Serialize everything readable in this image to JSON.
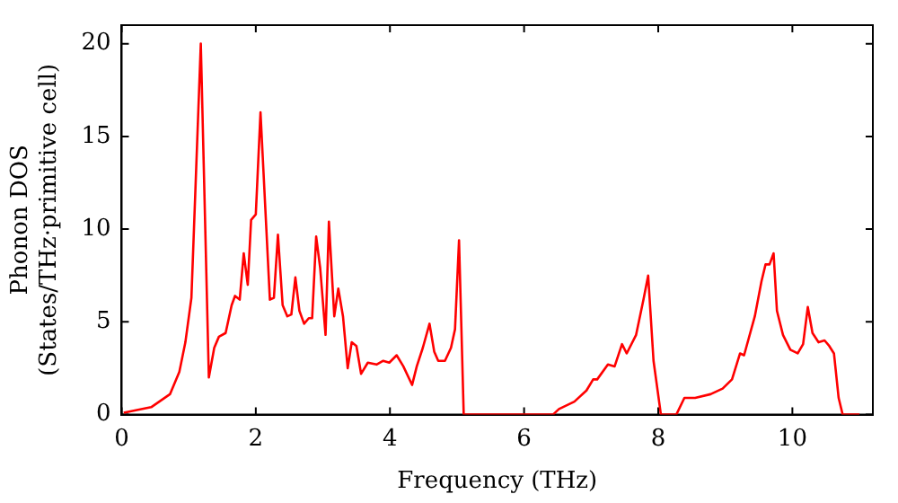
{
  "chart_data": {
    "type": "line",
    "xlabel": "Frequency (THz)",
    "ylabel": "Phonon DOS\n(States/THz·primitive cell)",
    "xlim": [
      0,
      11.2
    ],
    "ylim": [
      0,
      21
    ],
    "xticks": [
      0,
      2,
      4,
      6,
      8,
      10
    ],
    "yticks": [
      0,
      5,
      10,
      15,
      20
    ],
    "marker": "none",
    "line_style": "solid",
    "legend": false,
    "series": [
      {
        "color": "#ff0000",
        "x": [
          0.03,
          0.44,
          0.72,
          0.86,
          0.95,
          1.04,
          1.18,
          1.3,
          1.38,
          1.45,
          1.55,
          1.64,
          1.69,
          1.76,
          1.82,
          1.88,
          1.93,
          2.0,
          2.07,
          2.21,
          2.27,
          2.33,
          2.4,
          2.47,
          2.53,
          2.59,
          2.65,
          2.72,
          2.79,
          2.84,
          2.9,
          2.96,
          3.04,
          3.09,
          3.17,
          3.23,
          3.3,
          3.37,
          3.43,
          3.5,
          3.57,
          3.67,
          3.8,
          3.9,
          3.99,
          4.1,
          4.2,
          4.33,
          4.4,
          4.49,
          4.59,
          4.66,
          4.72,
          4.82,
          4.91,
          4.97,
          5.03,
          5.1,
          6.43,
          6.52,
          6.75,
          6.93,
          7.03,
          7.09,
          7.25,
          7.35,
          7.46,
          7.53,
          7.67,
          7.78,
          7.85,
          7.93,
          8.04,
          8.27,
          8.39,
          8.55,
          8.78,
          8.96,
          9.1,
          9.22,
          9.28,
          9.44,
          9.54,
          9.6,
          9.66,
          9.72,
          9.77,
          9.86,
          9.97,
          10.08,
          10.16,
          10.23,
          10.3,
          10.39,
          10.48,
          10.55,
          10.62,
          10.69,
          10.75,
          11.0
        ],
        "values": [
          0.1,
          0.4,
          1.1,
          2.3,
          3.9,
          6.3,
          20,
          2.0,
          3.6,
          4.2,
          4.4,
          5.9,
          6.4,
          6.2,
          8.7,
          7.0,
          10.5,
          10.8,
          16.3,
          6.2,
          6.3,
          9.7,
          5.9,
          5.3,
          5.4,
          7.4,
          5.6,
          4.9,
          5.2,
          5.2,
          9.6,
          7.9,
          4.3,
          10.4,
          5.3,
          6.8,
          5.3,
          2.5,
          3.9,
          3.7,
          2.2,
          2.8,
          2.7,
          2.9,
          2.8,
          3.2,
          2.6,
          1.6,
          2.6,
          3.6,
          4.9,
          3.4,
          2.9,
          2.9,
          3.6,
          4.6,
          9.4,
          0,
          0,
          0.3,
          0.7,
          1.3,
          1.9,
          1.9,
          2.7,
          2.6,
          3.8,
          3.3,
          4.3,
          6.2,
          7.5,
          2.9,
          0,
          0,
          0.9,
          0.9,
          1.1,
          1.4,
          1.9,
          3.3,
          3.2,
          5.3,
          7.2,
          8.1,
          8.1,
          8.7,
          5.6,
          4.3,
          3.5,
          3.3,
          3.8,
          5.8,
          4.4,
          3.9,
          4.0,
          3.7,
          3.3,
          0.9,
          0,
          0
        ]
      }
    ]
  }
}
